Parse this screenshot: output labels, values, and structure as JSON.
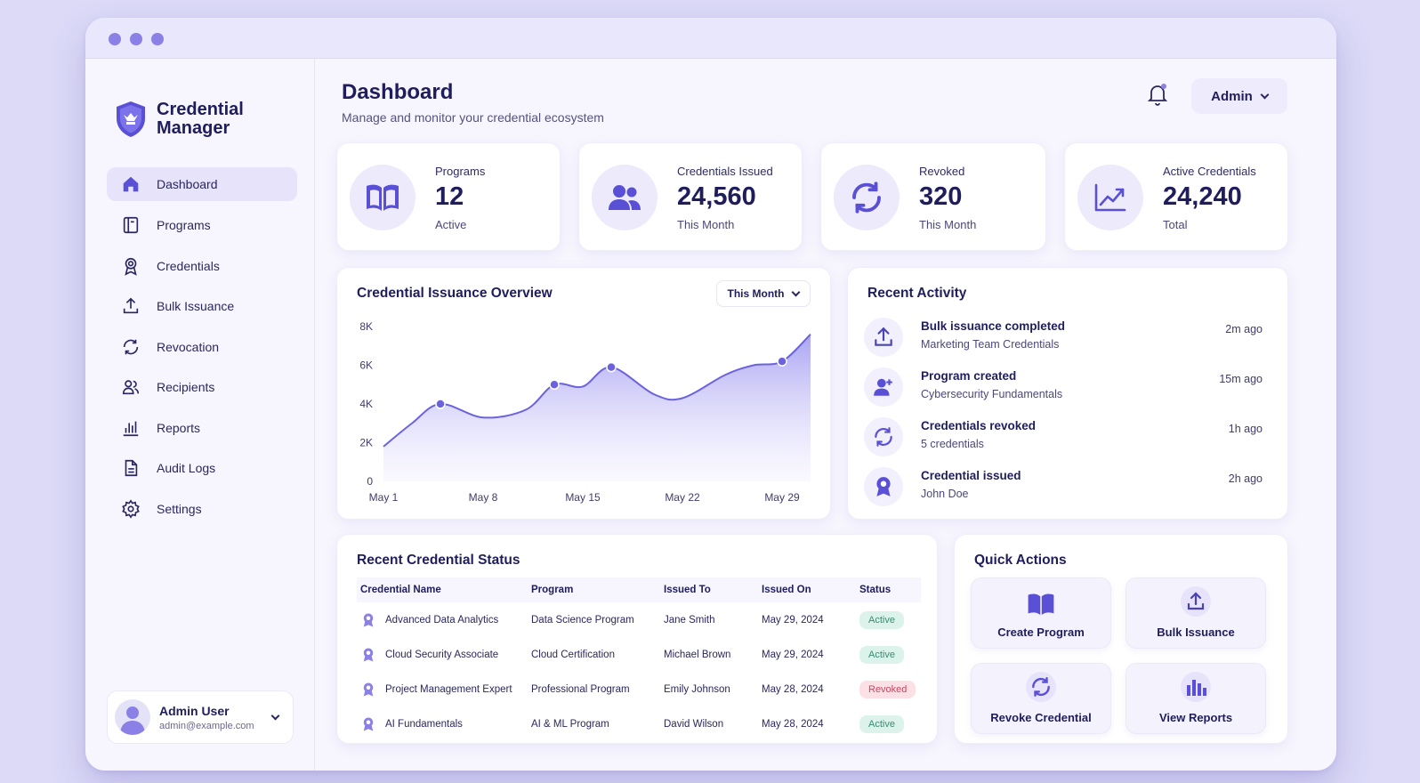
{
  "app": {
    "name_line1": "Credential",
    "name_line2": "Manager"
  },
  "colors": {
    "accent": "#6b62e0",
    "active_badge_bg": "#dcf3ec",
    "revoked_badge_bg": "#fbe0e5"
  },
  "sidebar": {
    "items": [
      {
        "label": "Dashboard",
        "icon": "home-icon"
      },
      {
        "label": "Programs",
        "icon": "book-icon"
      },
      {
        "label": "Credentials",
        "icon": "award-icon"
      },
      {
        "label": "Bulk Issuance",
        "icon": "upload-icon"
      },
      {
        "label": "Revocation",
        "icon": "refresh-icon"
      },
      {
        "label": "Recipients",
        "icon": "users-icon"
      },
      {
        "label": "Reports",
        "icon": "bar-chart-icon"
      },
      {
        "label": "Audit Logs",
        "icon": "document-icon"
      },
      {
        "label": "Settings",
        "icon": "gear-icon"
      }
    ],
    "user": {
      "name": "Admin User",
      "email": "admin@example.com"
    }
  },
  "header": {
    "title": "Dashboard",
    "subtitle": "Manage and monitor your credential ecosystem",
    "admin_label": "Admin"
  },
  "stats": [
    {
      "label": "Programs",
      "value": "12",
      "sub": "Active",
      "icon": "open-book-icon"
    },
    {
      "label": "Credentials Issued",
      "value": "24,560",
      "sub": "This Month",
      "icon": "users-icon"
    },
    {
      "label": "Revoked",
      "value": "320",
      "sub": "This Month",
      "icon": "refresh-icon"
    },
    {
      "label": "Active Credentials",
      "value": "24,240",
      "sub": "Total",
      "icon": "trend-up-icon"
    }
  ],
  "overview": {
    "title": "Credential Issuance Overview",
    "period": "This Month"
  },
  "chart_data": {
    "type": "area",
    "x": [
      "May 1",
      "May 3",
      "May 5",
      "May 8",
      "May 11",
      "May 13",
      "May 15",
      "May 17",
      "May 20",
      "May 22",
      "May 25",
      "May 27",
      "May 29",
      "May 31"
    ],
    "xticks": [
      "May 1",
      "May 8",
      "May 15",
      "May 22",
      "May 29"
    ],
    "yticks": [
      "0",
      "2K",
      "4K",
      "6K",
      "8K"
    ],
    "ylim": [
      0,
      8000
    ],
    "values": [
      1800,
      3000,
      4000,
      3300,
      3700,
      5000,
      4900,
      5900,
      4500,
      4300,
      5500,
      6000,
      6200,
      7600
    ],
    "markers": [
      2,
      5,
      7,
      12
    ],
    "grid": false,
    "legend": "none"
  },
  "activity": {
    "title": "Recent Activity",
    "items": [
      {
        "title": "Bulk issuance completed",
        "sub": "Marketing Team Credentials",
        "time": "2m ago",
        "icon": "upload-icon"
      },
      {
        "title": "Program created",
        "sub": "Cybersecurity Fundamentals",
        "time": "15m ago",
        "icon": "user-plus-icon"
      },
      {
        "title": "Credentials revoked",
        "sub": "5 credentials",
        "time": "1h ago",
        "icon": "refresh-icon"
      },
      {
        "title": "Credential issued",
        "sub": "John Doe",
        "time": "2h ago",
        "icon": "award-icon"
      }
    ]
  },
  "status_table": {
    "title": "Recent Credential Status",
    "columns": [
      "Credential Name",
      "Program",
      "Issued To",
      "Issued On",
      "Status"
    ],
    "rows": [
      {
        "name": "Advanced Data Analytics",
        "program": "Data Science Program",
        "to": "Jane Smith",
        "on": "May 29, 2024",
        "status": "Active"
      },
      {
        "name": "Cloud Security Associate",
        "program": "Cloud Certification",
        "to": "Michael Brown",
        "on": "May 29, 2024",
        "status": "Active"
      },
      {
        "name": "Project Management Expert",
        "program": "Professional Program",
        "to": "Emily Johnson",
        "on": "May 28, 2024",
        "status": "Revoked"
      },
      {
        "name": "AI Fundamentals",
        "program": "AI & ML Program",
        "to": "David Wilson",
        "on": "May 28, 2024",
        "status": "Active"
      }
    ]
  },
  "quick_actions": {
    "title": "Quick Actions",
    "items": [
      {
        "label": "Create Program",
        "icon": "open-book-icon"
      },
      {
        "label": "Bulk Issuance",
        "icon": "upload-icon"
      },
      {
        "label": "Revoke Credential",
        "icon": "refresh-icon"
      },
      {
        "label": "View Reports",
        "icon": "bar-chart-icon"
      }
    ]
  }
}
